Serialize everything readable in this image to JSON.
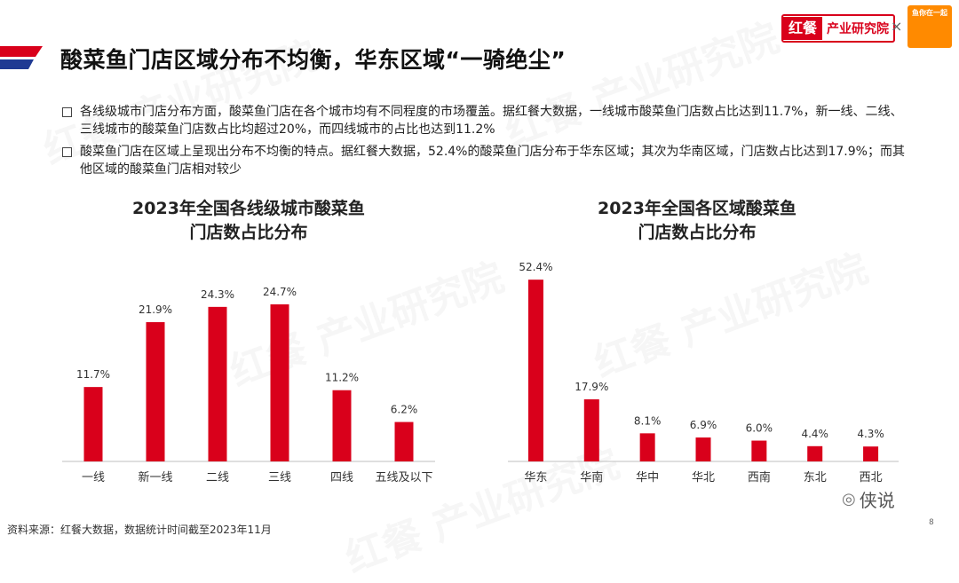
{
  "header": {
    "title": "酸菜鱼门店区域分布不均衡，华东区域“一骑绝尘”",
    "brand_mark": "红餐",
    "brand_name": "产业研究院",
    "separator": "×",
    "partner_logo_text": "鱼你在一起"
  },
  "bullets": [
    "各线级城市门店分布方面，酸菜鱼门店在各个城市均有不同程度的市场覆盖。据红餐大数据，一线城市酸菜鱼门店数占比达到11.7%，新一线、二线、三线城市的酸菜鱼门店数占比均超过20%，而四线城市的占比也达到11.2%",
    "酸菜鱼门店在区域上呈现出分布不均衡的特点。据红餐大数据，52.4%的酸菜鱼门店分布于华东区域；其次为华南区域，门店数占比达到17.9%；而其他区域的酸菜鱼门店相对较少"
  ],
  "chart_data": [
    {
      "type": "bar",
      "title": "2023年全国各线级城市酸菜鱼门店数占比分布",
      "title_lines": [
        "2023年全国各线级城市酸菜鱼",
        "门店数占比分布"
      ],
      "categories": [
        "一线",
        "新一线",
        "二线",
        "三线",
        "四线",
        "五线及以下"
      ],
      "values": [
        11.7,
        21.9,
        24.3,
        24.7,
        11.2,
        6.2
      ],
      "value_labels": [
        "11.7%",
        "21.9%",
        "24.3%",
        "24.7%",
        "11.2%",
        "6.2%"
      ],
      "unit": "%",
      "ylim": [
        0,
        30
      ],
      "color": "#d9001b",
      "grid": false,
      "legend": "none"
    },
    {
      "type": "bar",
      "title": "2023年全国各区域酸菜鱼门店数占比分布",
      "title_lines": [
        "2023年全国各区域酸菜鱼",
        "门店数占比分布"
      ],
      "categories": [
        "华东",
        "华南",
        "华中",
        "华北",
        "西南",
        "东北",
        "西北"
      ],
      "values": [
        52.4,
        17.9,
        8.1,
        6.9,
        6.0,
        4.4,
        4.3
      ],
      "value_labels": [
        "52.4%",
        "17.9%",
        "8.1%",
        "6.9%",
        "6.0%",
        "4.4%",
        "4.3%"
      ],
      "unit": "%",
      "ylim": [
        0,
        55
      ],
      "color": "#d9001b",
      "grid": false,
      "legend": "none"
    }
  ],
  "footer": {
    "source": "资料来源：红餐大数据，数据统计时间截至2023年11月",
    "page_number": "8",
    "social_text": "侠说"
  },
  "colors": {
    "accent": "#d9001b",
    "title_bar_blue": "#1f3a93"
  }
}
